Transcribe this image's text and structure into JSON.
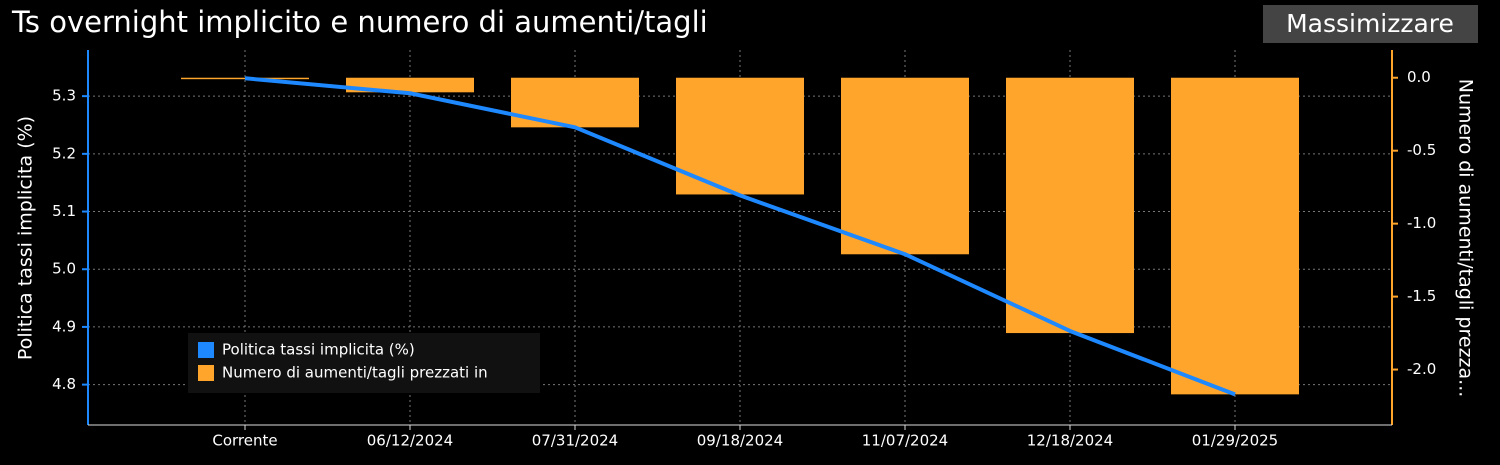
{
  "chart_data": {
    "type": "bar-line",
    "title": "Ts overnight implicito e numero di aumenti/tagli",
    "button": "Massimizzare",
    "y_label": "Politica tassi implicita (%)",
    "y2_label": "Numero di aumenti/tagli prezza...",
    "categories": [
      "Corrente",
      "06/12/2024",
      "07/31/2024",
      "09/18/2024",
      "11/07/2024",
      "12/18/2024",
      "01/29/2025"
    ],
    "series": [
      {
        "name": "Politica tassi implicita (%)",
        "type": "line",
        "axis": "y",
        "color": "#1e88ff",
        "values": [
          5.331,
          5.305,
          5.246,
          5.128,
          5.026,
          4.893,
          4.783
        ]
      },
      {
        "name": "Numero di aumenti/tagli prezzati in",
        "type": "bar",
        "axis": "y2",
        "color": "#ffa52c",
        "values": [
          -0.01,
          -0.1,
          -0.34,
          -0.8,
          -1.21,
          -1.75,
          -2.17
        ]
      }
    ],
    "ylim": [
      4.73,
      5.38
    ],
    "yticks": [
      4.8,
      4.9,
      {
        "value": 5,
        "label": "5.0"
      },
      5.1,
      5.2,
      5.3
    ],
    "y2lim": [
      -2.38,
      0.19
    ],
    "y2ticks": [
      {
        "value": 0,
        "label": "0.0"
      },
      -0.5,
      {
        "value": -1,
        "label": "-1.0"
      },
      -1.5,
      {
        "value": -2,
        "label": "-2.0"
      }
    ],
    "grid": true,
    "legend": "lower-left"
  }
}
